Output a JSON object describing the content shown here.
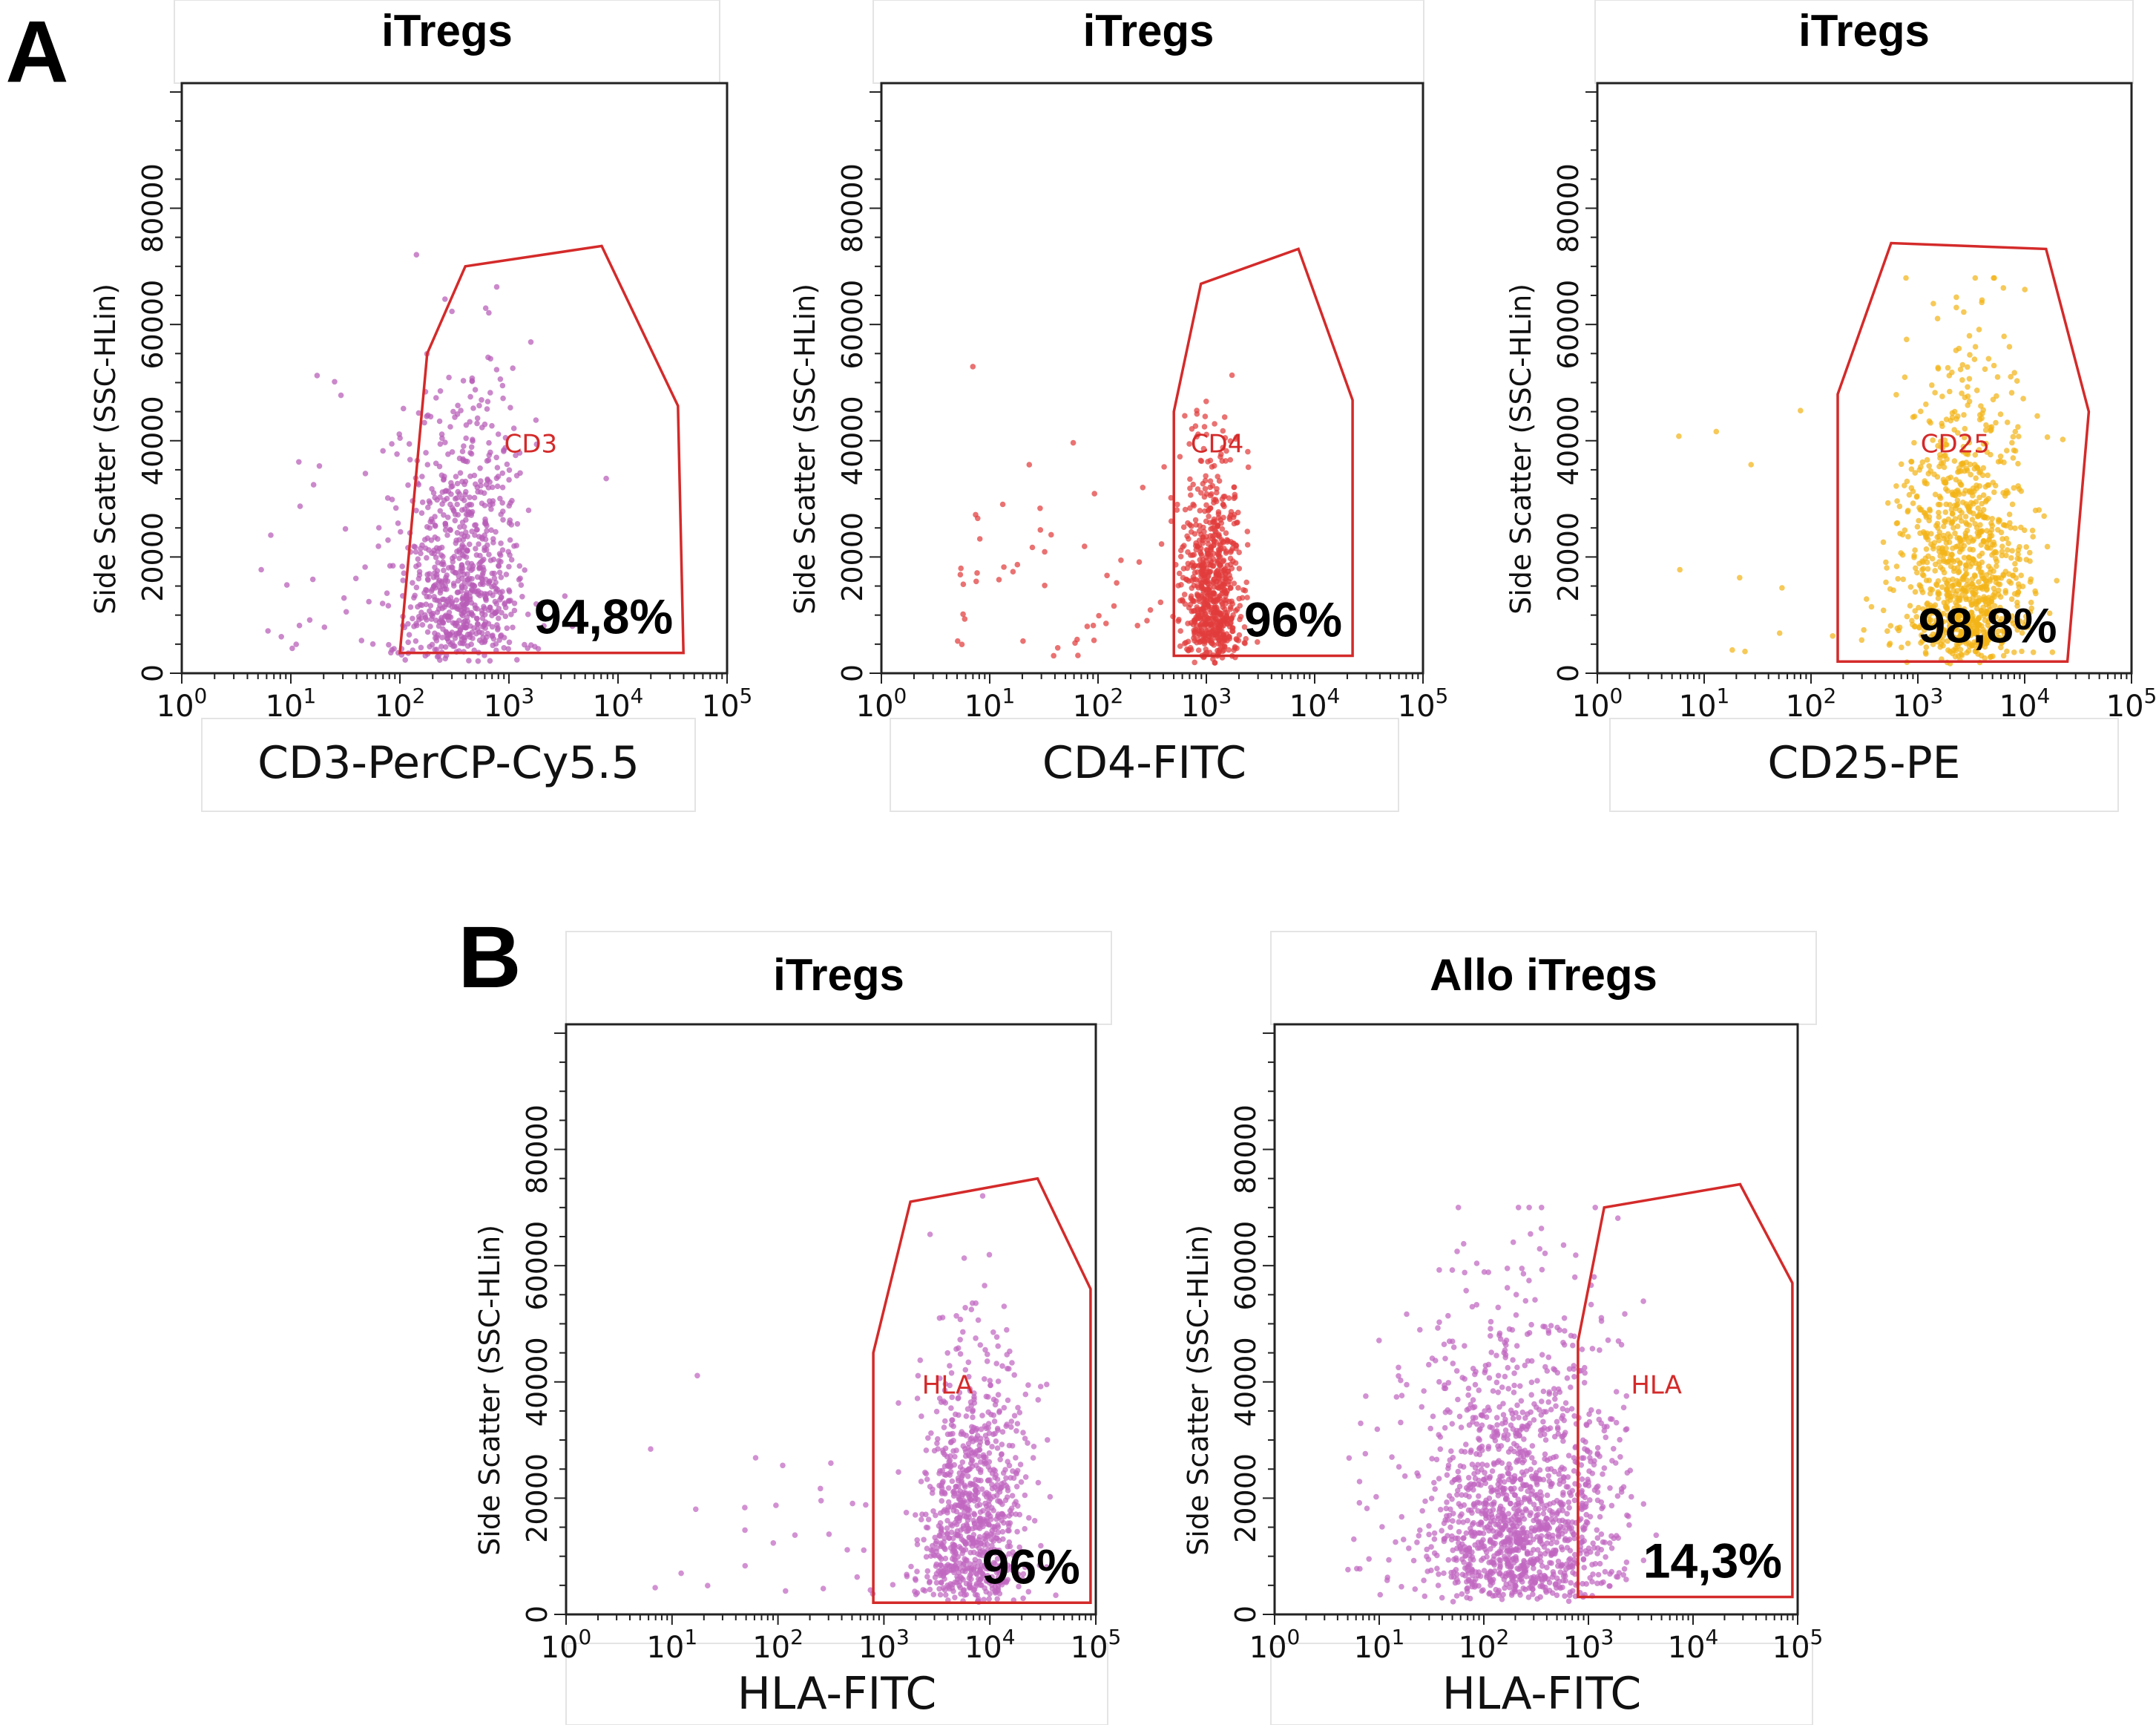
{
  "panel_labels": [
    "A",
    "B"
  ],
  "chart_data": [
    {
      "type": "scatter",
      "panel": "A",
      "title": "iTregs",
      "xlabel": "CD3-PerCP-Cy5.5",
      "ylabel": "Side Scatter (SSC-HLin)",
      "x_scale": "log",
      "xlim_exp": [
        0,
        5
      ],
      "ylim": [
        0,
        100000
      ],
      "x_ticks": [
        "10^0",
        "10^1",
        "10^2",
        "10^3",
        "10^4",
        "10^5"
      ],
      "y_ticks": [
        0,
        20000,
        40000,
        60000,
        80000
      ],
      "gate": {
        "name": "CD3",
        "percent": "94,8%",
        "color": "#d42a2a",
        "label_at": [
          3.2,
          38000
        ],
        "vertices": [
          [
            2.0,
            3500
          ],
          [
            2.25,
            55000
          ],
          [
            2.6,
            70000
          ],
          [
            3.85,
            73500
          ],
          [
            4.55,
            46000
          ],
          [
            4.6,
            3500
          ]
        ]
      },
      "population": {
        "color": "#b75bb7",
        "count": 820,
        "center_log": 2.6,
        "spread_log": 0.28,
        "main_fraction": 0.95,
        "y_scale": 20000,
        "y_max": 72000,
        "seed": 11
      }
    },
    {
      "type": "scatter",
      "panel": "A",
      "title": "iTregs",
      "xlabel": "CD4-FITC",
      "ylabel": "Side Scatter (SSC-HLin)",
      "x_scale": "log",
      "xlim_exp": [
        0,
        5
      ],
      "ylim": [
        0,
        100000
      ],
      "x_ticks": [
        "10^0",
        "10^1",
        "10^2",
        "10^3",
        "10^4",
        "10^5"
      ],
      "y_ticks": [
        0,
        20000,
        40000,
        60000,
        80000
      ],
      "gate": {
        "name": "CD4",
        "percent": "96%",
        "color": "#d42a2a",
        "label_at": [
          3.1,
          38000
        ],
        "vertices": [
          [
            2.7,
            3000
          ],
          [
            2.7,
            45000
          ],
          [
            2.95,
            67000
          ],
          [
            3.85,
            73000
          ],
          [
            4.35,
            47000
          ],
          [
            4.35,
            3000
          ]
        ]
      },
      "population": {
        "color": "#e23c3c",
        "count": 760,
        "center_log": 3.05,
        "spread_log": 0.13,
        "main_fraction": 0.93,
        "y_scale": 16000,
        "y_max": 68000,
        "seed": 23
      }
    },
    {
      "type": "scatter",
      "panel": "A",
      "title": "iTregs",
      "xlabel": "CD25-PE",
      "ylabel": "Side Scatter (SSC-HLin)",
      "x_scale": "log",
      "xlim_exp": [
        0,
        5
      ],
      "ylim": [
        0,
        100000
      ],
      "x_ticks": [
        "10^0",
        "10^1",
        "10^2",
        "10^3",
        "10^4",
        "10^5"
      ],
      "y_ticks": [
        0,
        20000,
        40000,
        60000,
        80000
      ],
      "gate": {
        "name": "CD25",
        "percent": "98,8%",
        "color": "#d42a2a",
        "label_at": [
          3.35,
          38000
        ],
        "vertices": [
          [
            2.25,
            2000
          ],
          [
            2.25,
            48000
          ],
          [
            2.75,
            74000
          ],
          [
            4.2,
            73000
          ],
          [
            4.6,
            45000
          ],
          [
            4.4,
            2000
          ]
        ]
      },
      "population": {
        "color": "#f2b417",
        "count": 1050,
        "center_log": 3.45,
        "spread_log": 0.3,
        "main_fraction": 0.985,
        "y_scale": 22000,
        "y_max": 68000,
        "seed": 37
      }
    },
    {
      "type": "scatter",
      "panel": "B",
      "title": "iTregs",
      "xlabel": "HLA-FITC",
      "ylabel": "Side Scatter (SSC-HLin)",
      "x_scale": "log",
      "xlim_exp": [
        0,
        5
      ],
      "ylim": [
        0,
        100000
      ],
      "x_ticks": [
        "10^0",
        "10^1",
        "10^2",
        "10^3",
        "10^4",
        "10^5"
      ],
      "y_ticks": [
        0,
        20000,
        40000,
        60000,
        80000
      ],
      "gate": {
        "name": "HLA",
        "percent": "96%",
        "color": "#d42a2a",
        "label_at": [
          3.6,
          38000
        ],
        "vertices": [
          [
            2.9,
            2000
          ],
          [
            2.9,
            45000
          ],
          [
            3.25,
            71000
          ],
          [
            4.45,
            75000
          ],
          [
            4.95,
            56000
          ],
          [
            4.95,
            2000
          ]
        ]
      },
      "population": {
        "color": "#c066c0",
        "count": 900,
        "center_log": 3.85,
        "spread_log": 0.25,
        "main_fraction": 0.96,
        "y_scale": 20000,
        "y_max": 72000,
        "seed": 53
      }
    },
    {
      "type": "scatter",
      "panel": "B",
      "title": "Allo iTregs",
      "xlabel": "HLA-FITC",
      "ylabel": "Side Scatter (SSC-HLin)",
      "x_scale": "log",
      "xlim_exp": [
        0,
        5
      ],
      "ylim": [
        0,
        100000
      ],
      "x_ticks": [
        "10^0",
        "10^1",
        "10^2",
        "10^3",
        "10^4",
        "10^5"
      ],
      "y_ticks": [
        0,
        20000,
        40000,
        60000,
        80000
      ],
      "gate": {
        "name": "HLA",
        "percent": "14,3%",
        "color": "#d42a2a",
        "label_at": [
          3.65,
          38000
        ],
        "vertices": [
          [
            2.9,
            3000
          ],
          [
            2.9,
            47000
          ],
          [
            3.15,
            70000
          ],
          [
            4.45,
            74000
          ],
          [
            4.95,
            57000
          ],
          [
            4.95,
            3000
          ]
        ]
      },
      "population": {
        "color": "#c066c0",
        "count": 1400,
        "center_log": 2.35,
        "spread_log": 0.45,
        "main_fraction": 0.97,
        "y_scale": 22000,
        "y_max": 70000,
        "seed": 71
      }
    }
  ]
}
